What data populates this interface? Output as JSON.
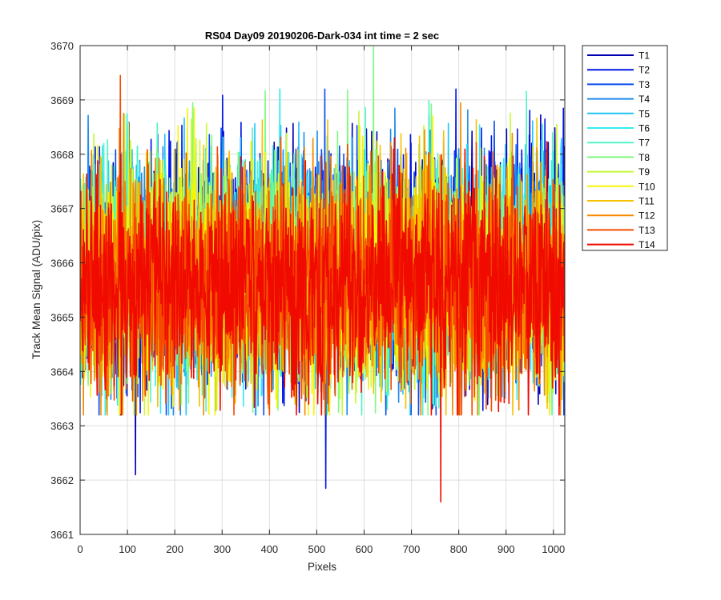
{
  "chart_data": {
    "type": "line",
    "title": "RS04 Day09 20190206-Dark-034 int time = 2 sec",
    "xlabel": "Pixels",
    "ylabel": "Track Mean Signal (ADU/pix)",
    "xlim": [
      0,
      1024
    ],
    "ylim": [
      3661,
      3670
    ],
    "xticks": [
      0,
      100,
      200,
      300,
      400,
      500,
      600,
      700,
      800,
      900,
      1000
    ],
    "yticks": [
      3661,
      3662,
      3663,
      3664,
      3665,
      3666,
      3667,
      3668,
      3669,
      3670
    ],
    "xtick_labels": [
      "0",
      "100",
      "200",
      "300",
      "400",
      "500",
      "600",
      "700",
      "800",
      "900",
      "1000"
    ],
    "ytick_labels": [
      "3661",
      "3662",
      "3663",
      "3664",
      "3665",
      "3666",
      "3667",
      "3668",
      "3669",
      "3670"
    ],
    "grid": true,
    "legend_position": "outside-top-right",
    "n_points_per_series": 1024,
    "signal_mean": 3666,
    "signal_std": 1.0,
    "series": [
      {
        "name": "T1",
        "color": "#0000b3"
      },
      {
        "name": "T2",
        "color": "#0016e6"
      },
      {
        "name": "T3",
        "color": "#0a4cf0"
      },
      {
        "name": "T4",
        "color": "#1e8cf0"
      },
      {
        "name": "T5",
        "color": "#22c4f5"
      },
      {
        "name": "T6",
        "color": "#33eaf2"
      },
      {
        "name": "T7",
        "color": "#50f5c8"
      },
      {
        "name": "T8",
        "color": "#80fa80"
      },
      {
        "name": "T9",
        "color": "#c8fa36"
      },
      {
        "name": "T10",
        "color": "#f5f500"
      },
      {
        "name": "T11",
        "color": "#f5c200"
      },
      {
        "name": "T12",
        "color": "#f58a00"
      },
      {
        "name": "T13",
        "color": "#f54a00"
      },
      {
        "name": "T14",
        "color": "#f00a00"
      }
    ],
    "notable_extremes": [
      {
        "series": "T8",
        "x": 620,
        "y": 3670.0
      },
      {
        "series": "T13",
        "x": 85,
        "y": 3669.45
      },
      {
        "series": "T14",
        "x": 762,
        "y": 3661.6
      },
      {
        "series": "T2",
        "x": 519,
        "y": 3661.85
      },
      {
        "series": "T1",
        "x": 117,
        "y": 3662.1
      }
    ]
  }
}
